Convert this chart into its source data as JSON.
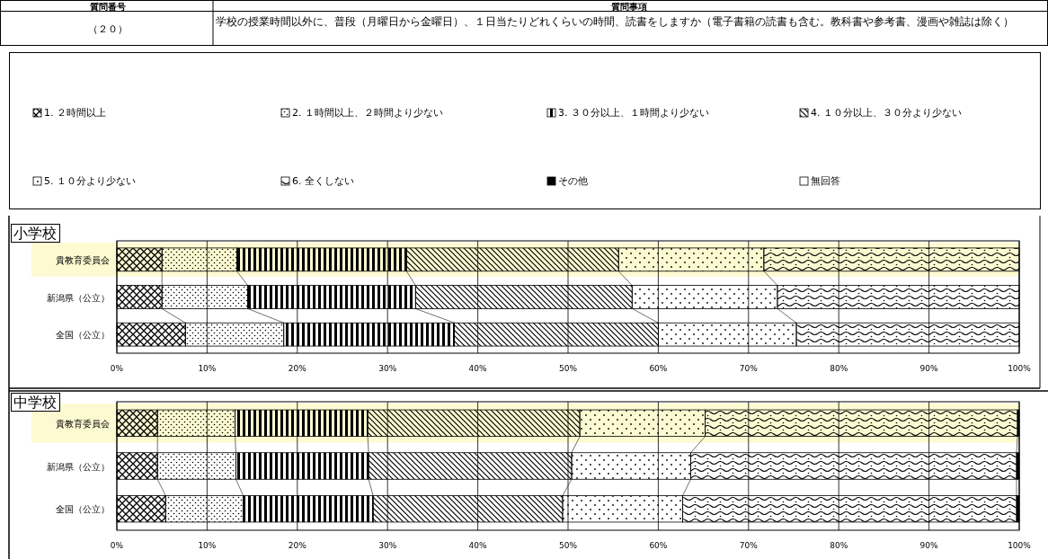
{
  "chart_data": [
    {
      "type": "bar",
      "orientation": "horizontal",
      "stacked": true,
      "title": "小学校",
      "annotations": [
        "質問番号",
        "（２０）",
        "質問事項",
        "学校の授業時間以外に、普段（月曜日から金曜日）、１日当たりどれくらいの時間、読書をしますか（電子書籍の読書も含む。教科書や参考書、漫画や雑誌は除く）"
      ],
      "categories": [
        "貴教育委員会",
        "新潟県（公立）",
        "全国（公立）"
      ],
      "series": [
        {
          "name": "1. ２時間以上",
          "color": "#000000",
          "values": [
            5.0,
            5.0,
            7.6
          ]
        },
        {
          "name": "2. １時間以上、２時間より少ない",
          "color": "#000000",
          "values": [
            8.3,
            9.5,
            10.9
          ]
        },
        {
          "name": "3. ３０分以上、１時間より少ない",
          "color": "#000000",
          "values": [
            18.8,
            18.6,
            18.9
          ]
        },
        {
          "name": "4. １０分以上、３０分より少ない",
          "color": "#000000",
          "values": [
            23.5,
            24.0,
            22.6
          ]
        },
        {
          "name": "5. １０分より少ない",
          "color": "#000000",
          "values": [
            16.1,
            16.1,
            15.3
          ]
        },
        {
          "name": "6. 全くしない",
          "color": "#000000",
          "values": [
            28.3,
            26.8,
            24.7
          ]
        },
        {
          "name": "その他",
          "color": "#000000",
          "values": [
            0,
            0,
            0
          ]
        },
        {
          "name": "無回答",
          "color": "#000000",
          "values": [
            0,
            0,
            0
          ]
        }
      ],
      "bands": [
        {
          "axis": "y",
          "from": "貴教育委員会",
          "to": "貴教育委員会",
          "color": "#fdfad2"
        }
      ],
      "xlim": [
        0,
        100
      ],
      "xticks": [
        {
          "value": 0,
          "label": "0%"
        },
        {
          "value": 10,
          "label": "10%"
        },
        {
          "value": 20,
          "label": "20%"
        },
        {
          "value": 30,
          "label": "30%"
        },
        {
          "value": 40,
          "label": "40%"
        },
        {
          "value": 50,
          "label": "50%"
        },
        {
          "value": 60,
          "label": "60%"
        },
        {
          "value": 70,
          "label": "70%"
        },
        {
          "value": 80,
          "label": "80%"
        },
        {
          "value": 90,
          "label": "90%"
        },
        {
          "value": 100,
          "label": "100%"
        }
      ],
      "grid": "x",
      "legend": "top"
    },
    {
      "type": "bar",
      "orientation": "horizontal",
      "stacked": true,
      "title": "中学校",
      "categories": [
        "貴教育委員会",
        "新潟県（公立）",
        "全国（公立）"
      ],
      "series": [
        {
          "color": "#000000",
          "values": [
            4.5,
            4.5,
            5.4
          ]
        },
        {
          "color": "#000000",
          "values": [
            8.6,
            8.7,
            8.6
          ]
        },
        {
          "color": "#000000",
          "values": [
            14.7,
            14.7,
            14.4
          ]
        },
        {
          "color": "#000000",
          "values": [
            23.5,
            22.5,
            21.0
          ]
        },
        {
          "color": "#000000",
          "values": [
            13.9,
            13.2,
            13.3
          ]
        },
        {
          "color": "#000000",
          "values": [
            34.6,
            36.1,
            37.0
          ]
        },
        {
          "color": "#000000",
          "values": [
            0.2,
            0.3,
            0.3
          ]
        },
        {
          "color": "#000000",
          "values": [
            0,
            0,
            0
          ]
        }
      ],
      "bands": [
        {
          "axis": "y",
          "from": "貴教育委員会",
          "to": "貴教育委員会",
          "color": "#fdfad2"
        }
      ],
      "xlim": [
        0,
        100
      ],
      "xticks": [
        {
          "value": 0,
          "label": "0%"
        },
        {
          "value": 10,
          "label": "10%"
        },
        {
          "value": 20,
          "label": "20%"
        },
        {
          "value": 30,
          "label": "30%"
        },
        {
          "value": 40,
          "label": "40%"
        },
        {
          "value": 50,
          "label": "50%"
        },
        {
          "value": 60,
          "label": "60%"
        },
        {
          "value": 70,
          "label": "70%"
        },
        {
          "value": 80,
          "label": "80%"
        },
        {
          "value": 90,
          "label": "90%"
        },
        {
          "value": 100,
          "label": "100%"
        }
      ],
      "grid": "x"
    }
  ]
}
